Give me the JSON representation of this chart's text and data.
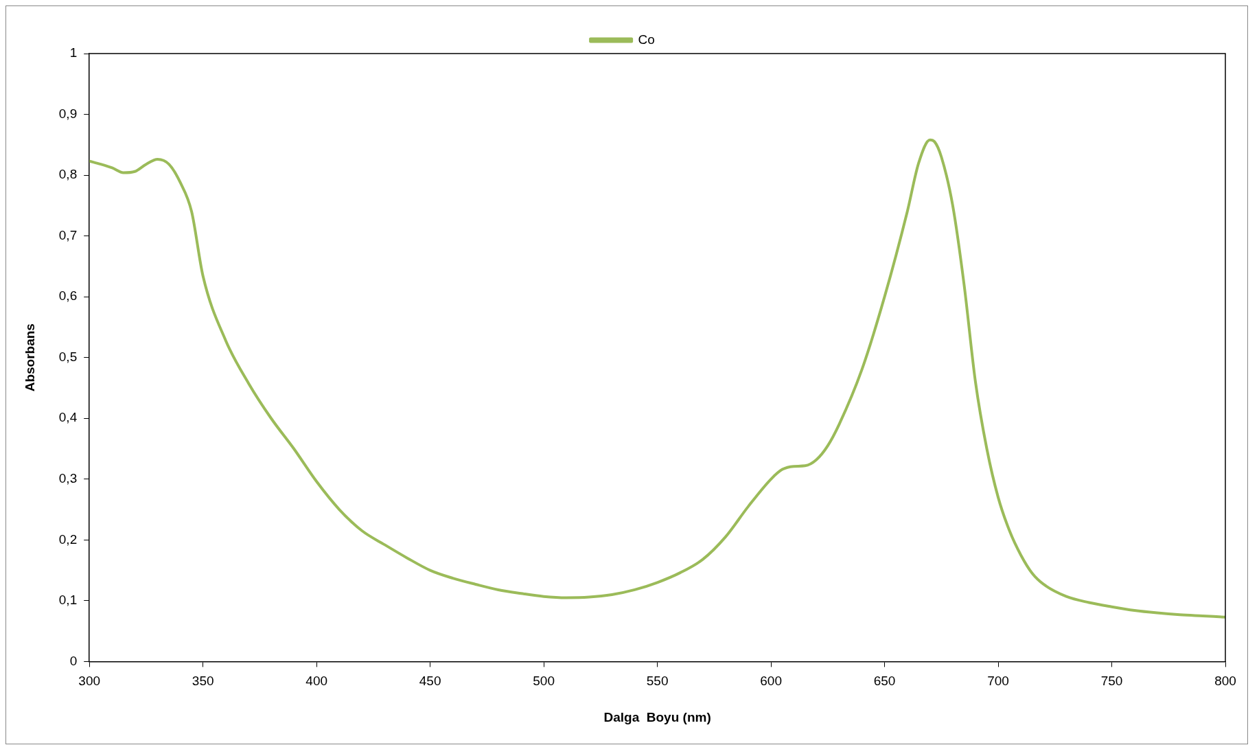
{
  "chart_data": {
    "type": "line",
    "xlabel": "Dalga  Boyu (nm)",
    "ylabel": "Absorbans",
    "legend": "top",
    "marker": "none",
    "line_style": "solid",
    "x": [
      300,
      305,
      310,
      315,
      320,
      325,
      330,
      335,
      340,
      345,
      350,
      360,
      370,
      380,
      390,
      400,
      410,
      420,
      430,
      440,
      450,
      460,
      470,
      480,
      490,
      500,
      510,
      520,
      530,
      540,
      550,
      560,
      570,
      580,
      590,
      600,
      605,
      610,
      615,
      620,
      625,
      630,
      640,
      650,
      660,
      665,
      670,
      672,
      675,
      680,
      685,
      690,
      695,
      700,
      705,
      710,
      715,
      720,
      730,
      740,
      750,
      760,
      770,
      780,
      790,
      800
    ],
    "series": [
      {
        "name": "Co",
        "color": "#9bbb59",
        "values": [
          0.823,
          0.818,
          0.812,
          0.804,
          0.806,
          0.818,
          0.826,
          0.818,
          0.788,
          0.74,
          0.634,
          0.528,
          0.458,
          0.4,
          0.35,
          0.296,
          0.25,
          0.215,
          0.192,
          0.17,
          0.15,
          0.137,
          0.127,
          0.118,
          0.112,
          0.107,
          0.105,
          0.106,
          0.11,
          0.118,
          0.13,
          0.146,
          0.168,
          0.205,
          0.255,
          0.3,
          0.316,
          0.321,
          0.322,
          0.332,
          0.355,
          0.39,
          0.48,
          0.6,
          0.74,
          0.82,
          0.858,
          0.855,
          0.83,
          0.75,
          0.62,
          0.46,
          0.35,
          0.27,
          0.215,
          0.175,
          0.145,
          0.127,
          0.107,
          0.097,
          0.09,
          0.084,
          0.08,
          0.077,
          0.075,
          0.073
        ]
      }
    ],
    "xlim": [
      300,
      800
    ],
    "xticks": [
      300,
      350,
      400,
      450,
      500,
      550,
      600,
      650,
      700,
      750,
      800
    ],
    "ylim": [
      0,
      1
    ],
    "yticks": [
      0,
      {
        "value": 0.1,
        "label": "0,1"
      },
      {
        "value": 0.2,
        "label": "0,2"
      },
      {
        "value": 0.3,
        "label": "0,3"
      },
      {
        "value": 0.4,
        "label": "0,4"
      },
      {
        "value": 0.5,
        "label": "0,5"
      },
      {
        "value": 0.6,
        "label": "0,6"
      },
      {
        "value": 0.7,
        "label": "0,7"
      },
      {
        "value": 0.8,
        "label": "0,8"
      },
      {
        "value": 0.9,
        "label": "0,9"
      },
      1
    ],
    "grid": false
  }
}
